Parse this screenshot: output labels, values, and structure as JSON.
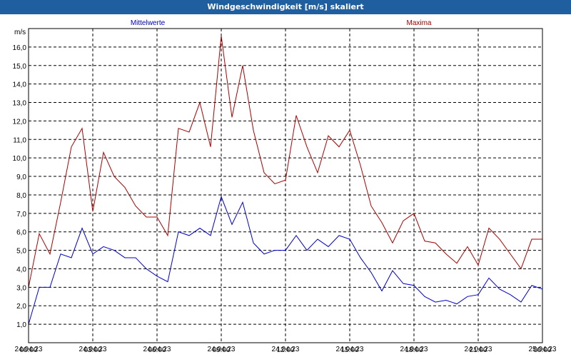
{
  "window": {
    "title": "Windgeschwindigkeit [m/s] skaliert"
  },
  "chart_data": {
    "type": "line",
    "title": "Windgeschwindigkeit [m/s] skaliert",
    "ylabel": "m/s",
    "ylim": [
      0,
      17
    ],
    "y_ticks": [
      "1,0",
      "2,0",
      "3,0",
      "4,0",
      "5,0",
      "6,0",
      "7,0",
      "8,0",
      "9,0",
      "10,0",
      "11,0",
      "12,0",
      "13,0",
      "14,0",
      "15,0",
      "16,0"
    ],
    "xlim_hours": [
      0,
      24
    ],
    "x_ticks": [
      {
        "time": "00:00",
        "date": "24.04.23"
      },
      {
        "time": "03:00",
        "date": "24.04.23"
      },
      {
        "time": "06:00",
        "date": "24.04.23"
      },
      {
        "time": "09:00",
        "date": "24.04.23"
      },
      {
        "time": "12:00",
        "date": "24.04.23"
      },
      {
        "time": "15:00",
        "date": "24.04.23"
      },
      {
        "time": "18:00",
        "date": "24.04.23"
      },
      {
        "time": "21:00",
        "date": "24.04.23"
      },
      {
        "time": "00:00",
        "date": "25.04.23"
      }
    ],
    "grid": true,
    "x_hours": [
      0,
      0.5,
      1,
      1.5,
      2,
      2.5,
      3,
      3.5,
      4,
      4.5,
      5,
      5.5,
      6,
      6.5,
      7,
      7.5,
      8,
      8.5,
      9,
      9.5,
      10,
      10.5,
      11,
      11.5,
      12,
      12.5,
      13,
      13.5,
      14,
      14.5,
      15,
      15.5,
      16,
      16.5,
      17,
      17.5,
      18,
      18.5,
      19,
      19.5,
      20,
      20.5,
      21,
      21.5,
      22,
      22.5,
      23,
      23.5,
      24
    ],
    "series": [
      {
        "name": "Mittelwerte",
        "color": "#0000cc",
        "values": [
          1.0,
          3.0,
          3.0,
          4.8,
          4.6,
          6.2,
          4.8,
          5.2,
          5.0,
          4.6,
          4.6,
          4.0,
          3.6,
          3.3,
          6.0,
          5.8,
          6.2,
          5.8,
          7.9,
          6.4,
          7.6,
          5.4,
          4.8,
          5.0,
          5.0,
          5.8,
          5.0,
          5.6,
          5.2,
          5.8,
          5.6,
          4.6,
          3.8,
          2.8,
          3.9,
          3.2,
          3.1,
          2.5,
          2.2,
          2.3,
          2.1,
          2.5,
          2.6,
          3.5,
          2.9,
          2.6,
          2.2,
          3.1,
          2.9
        ]
      },
      {
        "name": "Maxima",
        "color": "#aa0000",
        "values": [
          3.0,
          5.9,
          4.8,
          7.6,
          10.6,
          11.6,
          7.1,
          10.3,
          9.0,
          8.4,
          7.4,
          6.8,
          6.8,
          5.8,
          11.6,
          11.4,
          13.0,
          10.6,
          16.6,
          12.2,
          15.0,
          11.5,
          9.2,
          8.6,
          8.8,
          12.3,
          10.6,
          9.2,
          11.2,
          10.6,
          11.5,
          9.6,
          7.4,
          6.5,
          5.4,
          6.6,
          7.0,
          5.5,
          5.4,
          4.8,
          4.3,
          5.2,
          4.2,
          6.2,
          5.6,
          4.8,
          4.0,
          5.6,
          5.6
        ]
      }
    ]
  }
}
